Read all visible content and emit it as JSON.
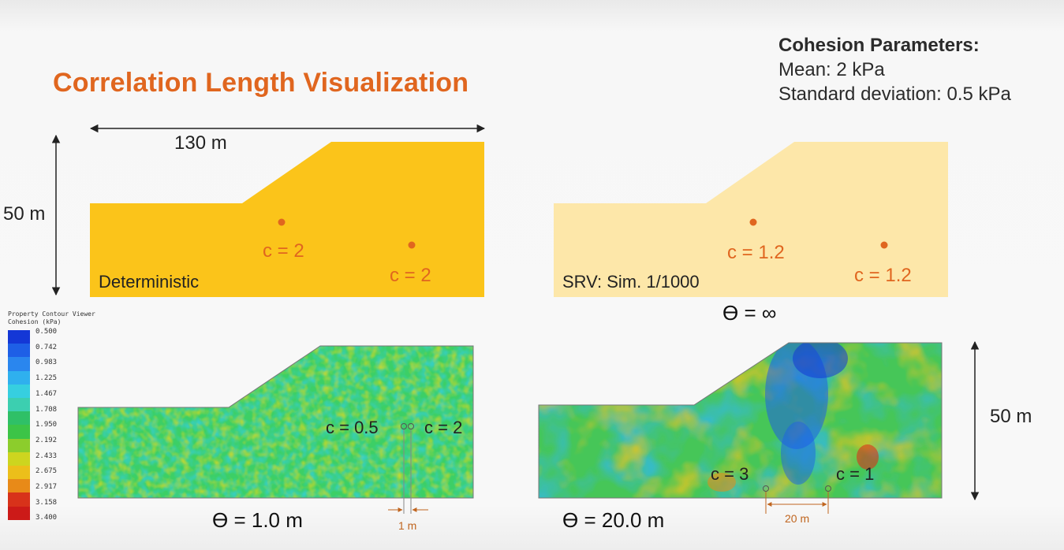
{
  "title": "Correlation Length Visualization",
  "params": {
    "heading": "Cohesion Parameters:",
    "mean": "Mean: 2 kPa",
    "sd": "Standard deviation: 0.5 kPa"
  },
  "dimensions": {
    "width": "130 m",
    "height_left": "50 m",
    "height_right": "50 m"
  },
  "panel_det": {
    "label": "Deterministic",
    "c1": "c = 2",
    "c2": "c = 2",
    "fill": "#fbc41a"
  },
  "panel_srv": {
    "label": "SRV: Sim. 1/1000",
    "c1": "c = 1.2",
    "c2": "c = 1.2",
    "theta": "ϴ = ∞",
    "fill": "#fde7a9"
  },
  "panel_field1": {
    "theta": "ϴ = 1.0 m",
    "c1": "c = 0.5",
    "c2": "c = 2",
    "spacing": "1 m"
  },
  "panel_field20": {
    "theta": "ϴ = 20.0 m",
    "c1": "c = 3",
    "c2": "c = 1",
    "spacing": "20 m"
  },
  "legend": {
    "title_line1": "Property Contour Viewer",
    "title_line2": "Cohesion (kPa)",
    "values": [
      "0.500",
      "0.742",
      "0.983",
      "1.225",
      "1.467",
      "1.708",
      "1.950",
      "2.192",
      "2.433",
      "2.675",
      "2.917",
      "3.158",
      "3.400"
    ],
    "colors": [
      "#1437d6",
      "#1e5fe6",
      "#2a86ee",
      "#2fb0ee",
      "#36cfe0",
      "#3ccfb0",
      "#2fc067",
      "#3cc447",
      "#8ccd2c",
      "#cdd51f",
      "#ecbf1a",
      "#e88a18",
      "#d8321a",
      "#cc1a18"
    ]
  },
  "accent": "#e0661f"
}
